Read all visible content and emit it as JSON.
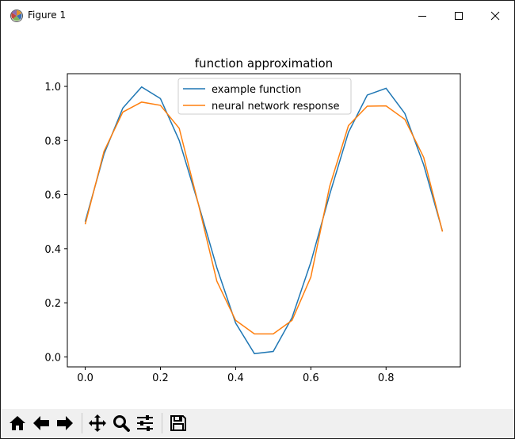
{
  "window": {
    "title": "Figure 1"
  },
  "toolbar": {
    "buttons": [
      {
        "name": "home",
        "icon": "home-icon"
      },
      {
        "name": "back",
        "icon": "arrow-left-icon"
      },
      {
        "name": "forward",
        "icon": "arrow-right-icon"
      },
      {
        "name": "pan",
        "icon": "move-icon"
      },
      {
        "name": "zoom",
        "icon": "magnifier-icon"
      },
      {
        "name": "configure-subplots",
        "icon": "sliders-icon"
      },
      {
        "name": "save",
        "icon": "floppy-disk-icon"
      }
    ]
  },
  "chart_data": {
    "type": "line",
    "title": "function approximation",
    "xlabel": "",
    "ylabel": "",
    "xlim": [
      -0.0475,
      0.9975
    ],
    "ylim": [
      -0.037,
      1.047
    ],
    "xticks": [
      "0.0",
      "0.2",
      "0.4",
      "0.6",
      "0.8"
    ],
    "xtick_values": [
      0.0,
      0.2,
      0.4,
      0.6,
      0.8
    ],
    "yticks": [
      "0.0",
      "0.2",
      "0.4",
      "0.6",
      "0.8",
      "1.0"
    ],
    "ytick_values": [
      0.0,
      0.2,
      0.4,
      0.6,
      0.8,
      1.0
    ],
    "grid": false,
    "legend_position": "top-center",
    "x": [
      0.0,
      0.05,
      0.1,
      0.15,
      0.2,
      0.25,
      0.3,
      0.35,
      0.4,
      0.45,
      0.5,
      0.55,
      0.6,
      0.65,
      0.7,
      0.75,
      0.8,
      0.85,
      0.9,
      0.95
    ],
    "series": [
      {
        "name": "example function",
        "color": "#1f77b4",
        "values": [
          0.5,
          0.75,
          0.92,
          0.998,
          0.955,
          0.8,
          0.57,
          0.33,
          0.125,
          0.012,
          0.02,
          0.145,
          0.35,
          0.6,
          0.83,
          0.968,
          0.993,
          0.9,
          0.71,
          0.465
        ]
      },
      {
        "name": "neural network response",
        "color": "#ff7f0e",
        "values": [
          0.49,
          0.76,
          0.905,
          0.942,
          0.93,
          0.845,
          0.57,
          0.28,
          0.135,
          0.085,
          0.085,
          0.135,
          0.295,
          0.63,
          0.855,
          0.927,
          0.928,
          0.878,
          0.738,
          0.463
        ]
      }
    ]
  }
}
